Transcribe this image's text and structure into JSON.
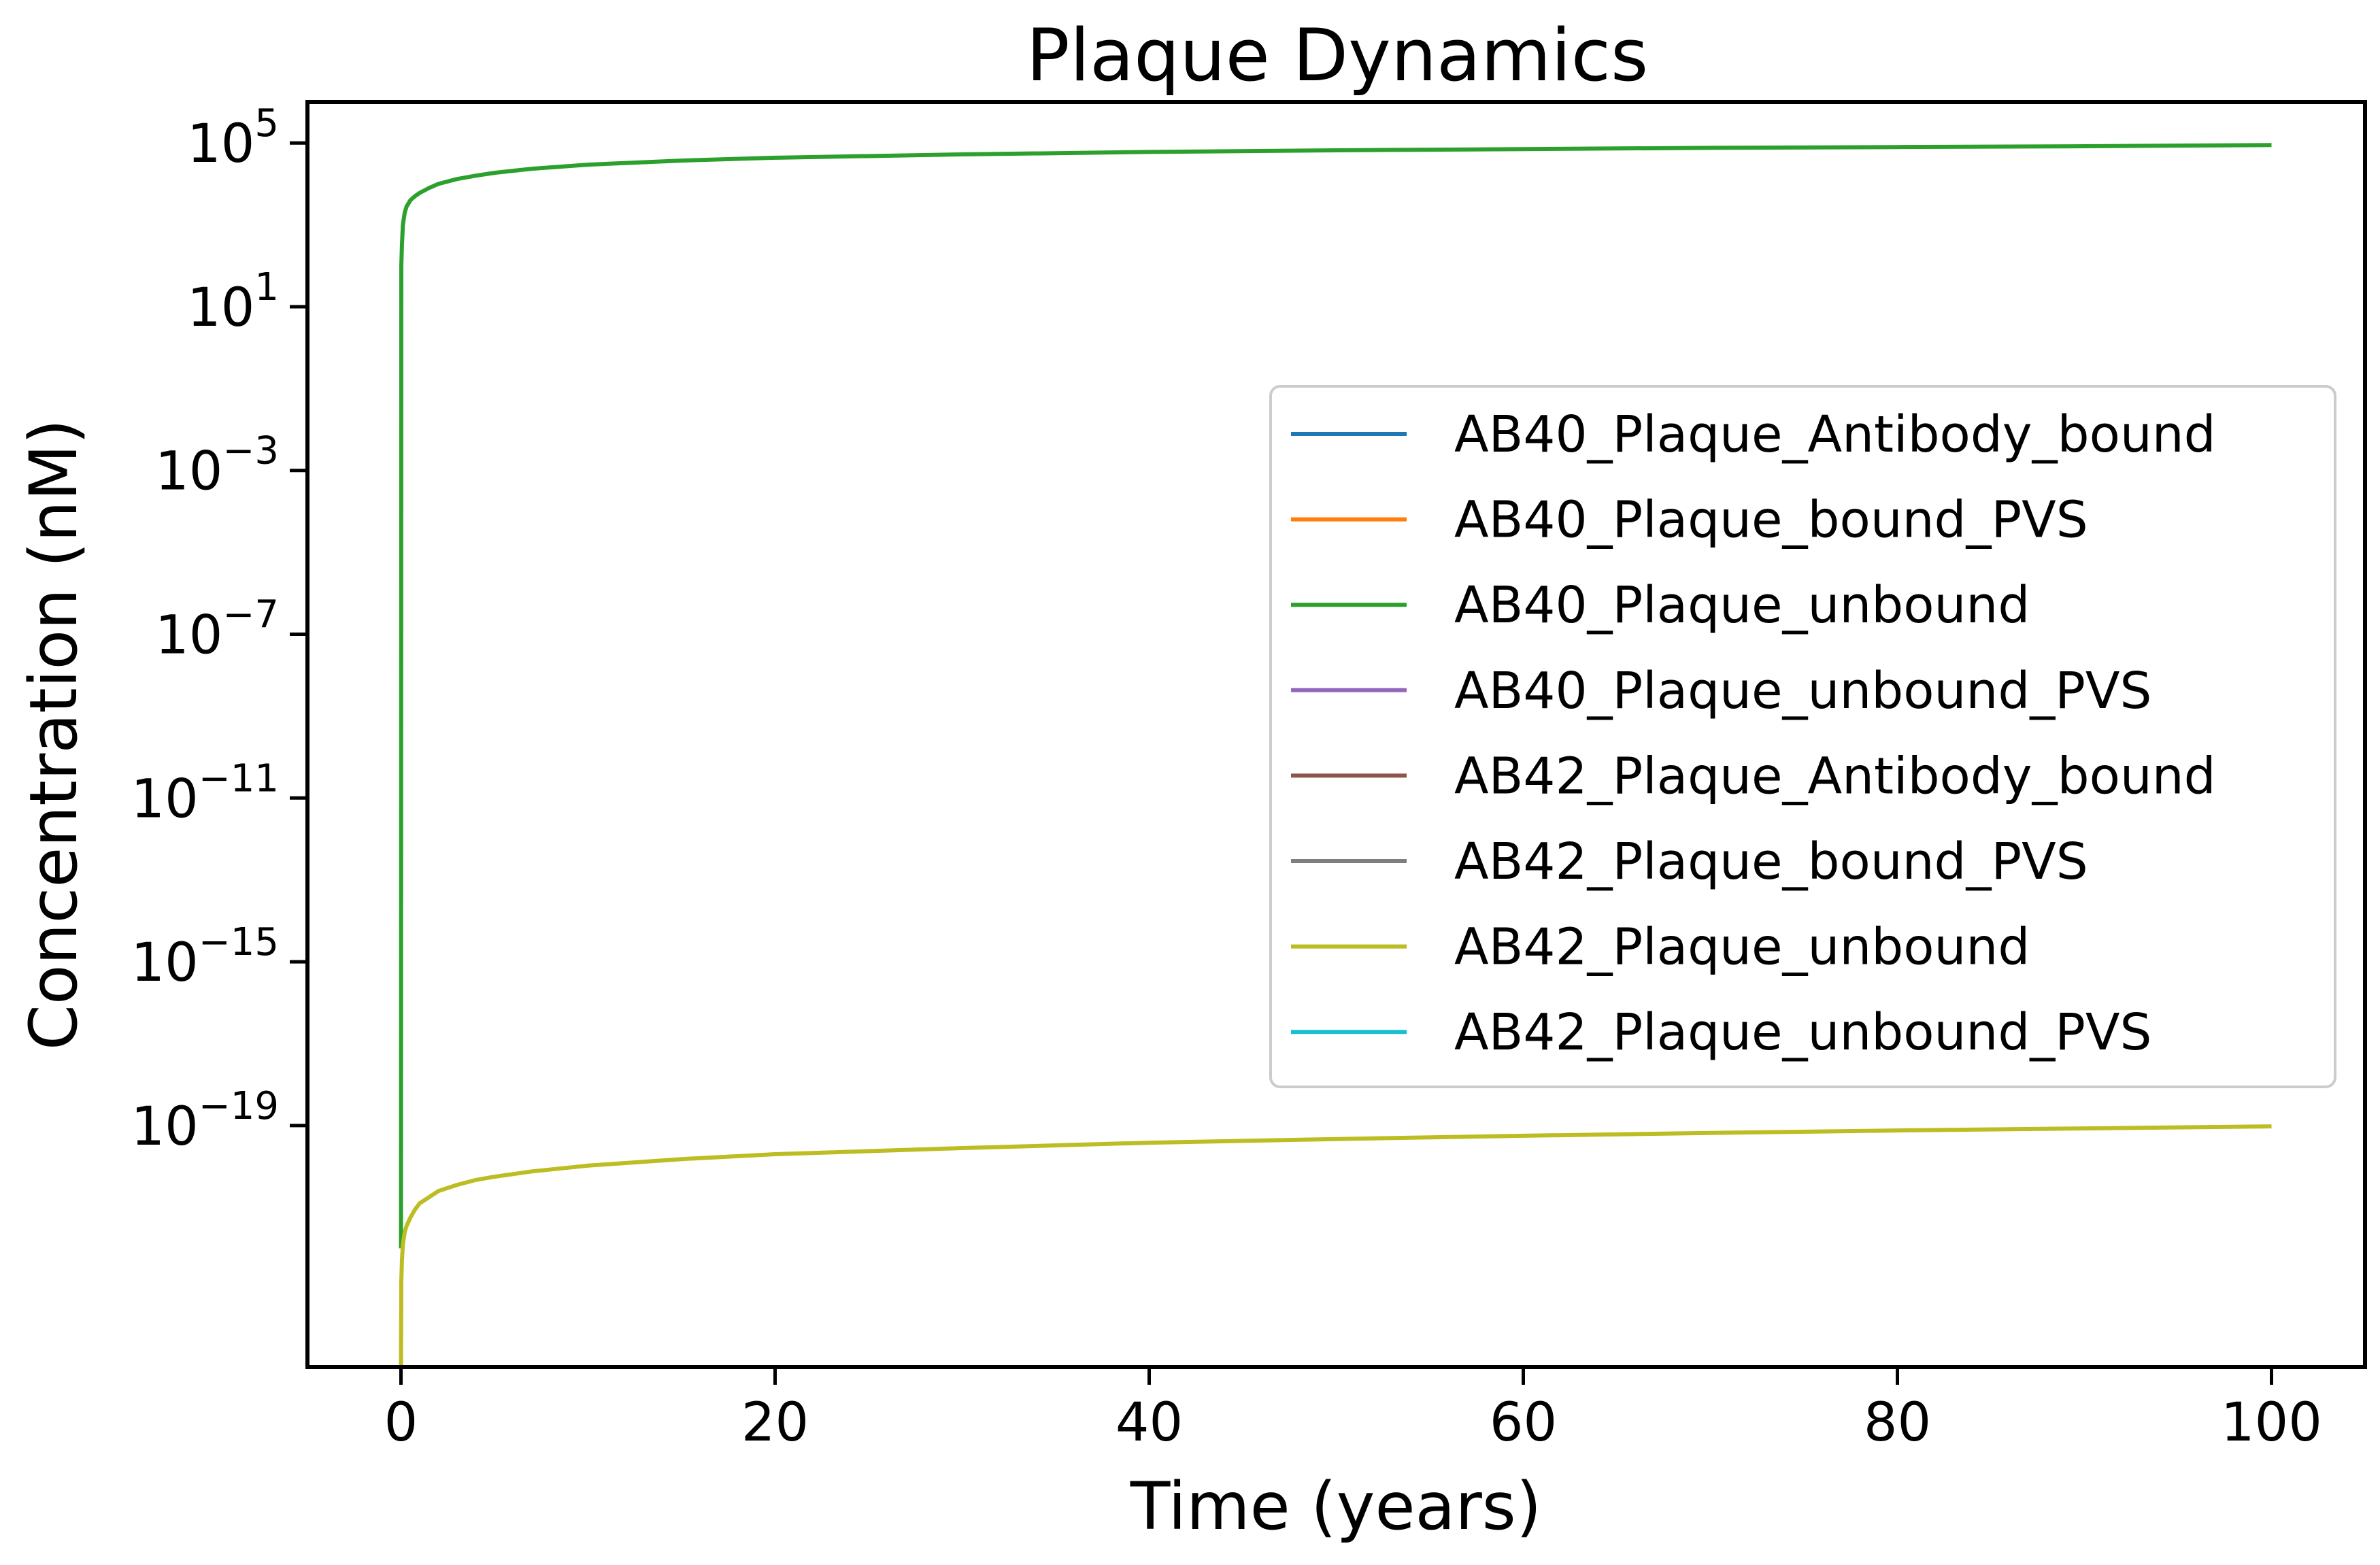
{
  "chart_data": {
    "type": "line",
    "title": "Plaque Dynamics",
    "xlabel": "Time (years)",
    "ylabel": "Concentration (nM)",
    "y_scale": "log",
    "xlim": [
      -5,
      105
    ],
    "ylim_log10": [
      -24.9,
      6.0
    ],
    "x_ticks": [
      0,
      20,
      40,
      60,
      80,
      100
    ],
    "y_ticks": [
      {
        "base": "10",
        "exp": "5",
        "log10": 5
      },
      {
        "base": "10",
        "exp": "1",
        "log10": 1
      },
      {
        "base": "10",
        "exp": "−3",
        "log10": -3
      },
      {
        "base": "10",
        "exp": "−7",
        "log10": -7
      },
      {
        "base": "10",
        "exp": "−11",
        "log10": -11
      },
      {
        "base": "10",
        "exp": "−15",
        "log10": -15
      },
      {
        "base": "10",
        "exp": "−19",
        "log10": -19
      }
    ],
    "grid": false,
    "legend_position": "center-right",
    "x": [
      0,
      0.02,
      0.05,
      0.1,
      0.2,
      0.3,
      0.5,
      0.75,
      1,
      1.5,
      2,
      3,
      4,
      5,
      7,
      10,
      15,
      20,
      30,
      40,
      50,
      60,
      70,
      80,
      90,
      100
    ],
    "series": [
      {
        "name": "AB40_Plaque_Antibody_bound",
        "color": "#1f77b4",
        "log10_values": null
      },
      {
        "name": "AB40_Plaque_bound_PVS",
        "color": "#ff7f0e",
        "log10_values": null
      },
      {
        "name": "AB40_Plaque_unbound",
        "color": "#2ca02c",
        "log10_values": [
          -22.0,
          2.0,
          2.5,
          3.0,
          3.3,
          3.45,
          3.6,
          3.7,
          3.78,
          3.9,
          4.0,
          4.12,
          4.2,
          4.27,
          4.37,
          4.47,
          4.57,
          4.64,
          4.72,
          4.78,
          4.82,
          4.85,
          4.88,
          4.9,
          4.92,
          4.95
        ]
      },
      {
        "name": "AB40_Plaque_unbound_PVS",
        "color": "#9467bd",
        "log10_values": null
      },
      {
        "name": "AB42_Plaque_Antibody_bound",
        "color": "#8c564b",
        "log10_values": null
      },
      {
        "name": "AB42_Plaque_bound_PVS",
        "color": "#7f7f7f",
        "log10_values": null
      },
      {
        "name": "AB42_Plaque_unbound",
        "color": "#bcbd22",
        "log10_values": [
          -24.9,
          -22.8,
          -22.3,
          -21.9,
          -21.6,
          -21.45,
          -21.25,
          -21.05,
          -20.9,
          -20.75,
          -20.6,
          -20.45,
          -20.33,
          -20.25,
          -20.12,
          -19.98,
          -19.82,
          -19.7,
          -19.55,
          -19.42,
          -19.33,
          -19.25,
          -19.18,
          -19.12,
          -19.07,
          -19.02
        ]
      },
      {
        "name": "AB42_Plaque_unbound_PVS",
        "color": "#17becf",
        "log10_values": null
      }
    ]
  }
}
